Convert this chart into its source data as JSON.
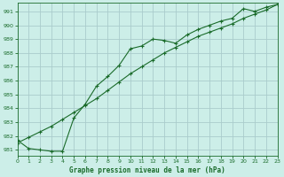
{
  "background_color": "#cceee8",
  "grid_color": "#aacccc",
  "line_color": "#1a6b2a",
  "line1_x": [
    0,
    1,
    2,
    3,
    4,
    5,
    6,
    7,
    8,
    9,
    10,
    11,
    12,
    13,
    14,
    15,
    16,
    17,
    18,
    19,
    20,
    21,
    22,
    23
  ],
  "line1_y": [
    981.7,
    981.1,
    981.0,
    980.9,
    980.9,
    983.3,
    984.3,
    985.6,
    986.3,
    987.1,
    988.3,
    988.5,
    989.0,
    988.9,
    988.7,
    989.3,
    989.7,
    990.0,
    990.3,
    990.5,
    991.2,
    991.0,
    991.3,
    991.5
  ],
  "line2_x": [
    0,
    1,
    2,
    3,
    4,
    5,
    6,
    7,
    8,
    9,
    10,
    11,
    12,
    13,
    14,
    15,
    16,
    17,
    18,
    19,
    20,
    21,
    22,
    23
  ],
  "line2_y": [
    981.5,
    981.9,
    982.3,
    982.7,
    983.2,
    983.7,
    984.2,
    984.7,
    985.3,
    985.9,
    986.5,
    987.0,
    987.5,
    988.0,
    988.4,
    988.8,
    989.2,
    989.5,
    989.8,
    990.1,
    990.5,
    990.8,
    991.1,
    991.5
  ],
  "xlim": [
    0,
    23
  ],
  "ylim": [
    980.6,
    991.6
  ],
  "yticks": [
    981,
    982,
    983,
    984,
    985,
    986,
    987,
    988,
    989,
    990,
    991
  ],
  "xticks": [
    0,
    1,
    2,
    3,
    4,
    5,
    6,
    7,
    8,
    9,
    10,
    11,
    12,
    13,
    14,
    15,
    16,
    17,
    18,
    19,
    20,
    21,
    22,
    23
  ],
  "xlabel": "Graphe pression niveau de la mer (hPa)"
}
